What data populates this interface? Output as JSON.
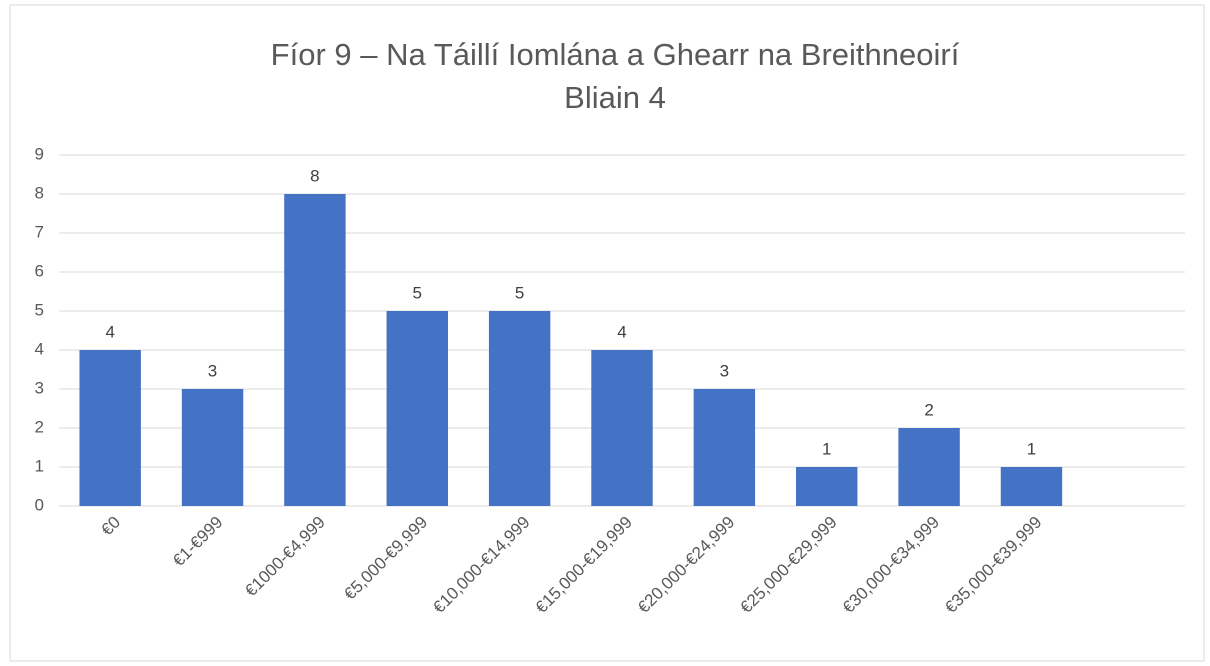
{
  "chart_data": {
    "type": "bar",
    "title": "Fíor 9 – Na Táillí Iomlána a Ghearr na Breithneoirí",
    "subtitle": "Bliain 4",
    "categories": [
      "€0",
      "€1-€999",
      "€1000-€4,999",
      "€5,000-€9,999",
      "€10,000-€14,999",
      "€15,000-€19,999",
      "€20,000-€24,999",
      "€25,000-€29,999",
      "€30,000-€34,999",
      "€35,000-€39,999",
      null
    ],
    "values": [
      4,
      3,
      8,
      5,
      5,
      4,
      3,
      1,
      2,
      1,
      null
    ],
    "color": "#4472c4",
    "ylim": [
      0,
      9
    ],
    "yticks": [
      0,
      1,
      2,
      3,
      4,
      5,
      6,
      7,
      8,
      9
    ],
    "grid": true
  }
}
